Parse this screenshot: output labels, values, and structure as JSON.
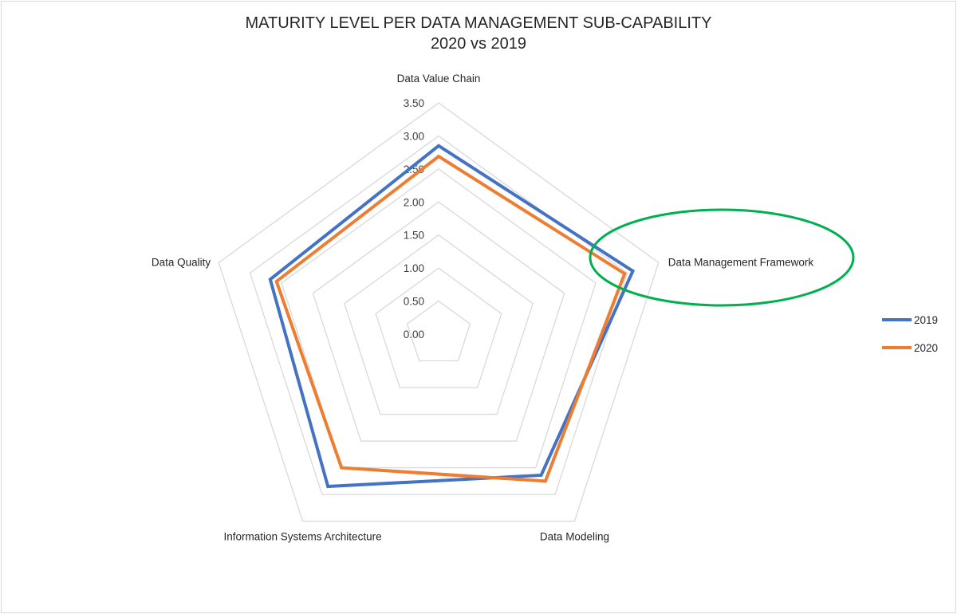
{
  "chart_data": {
    "type": "radar",
    "title": "MATURITY LEVEL PER DATA MANAGEMENT SUB-CAPABILITY",
    "subtitle": "2020 vs 2019",
    "categories": [
      "Data Value Chain",
      "Data Management Framework",
      "Data Modeling",
      "Information Systems Architecture",
      "Data Quality"
    ],
    "rlim": [
      0,
      3.5
    ],
    "ticks": [
      "0.00",
      "0.50",
      "1.00",
      "1.50",
      "2.00",
      "2.50",
      "3.00",
      "3.50"
    ],
    "grid": true,
    "legend": "right",
    "series": [
      {
        "name": "2019",
        "color": "#4472C4",
        "values": [
          2.85,
          3.09,
          2.64,
          2.85,
          2.68
        ]
      },
      {
        "name": "2020",
        "color": "#ED7D31",
        "values": [
          2.69,
          2.96,
          2.75,
          2.5,
          2.58
        ]
      }
    ],
    "annotation": {
      "shape": "ellipse",
      "color": "#00B050",
      "target": "Data Management Framework"
    }
  }
}
